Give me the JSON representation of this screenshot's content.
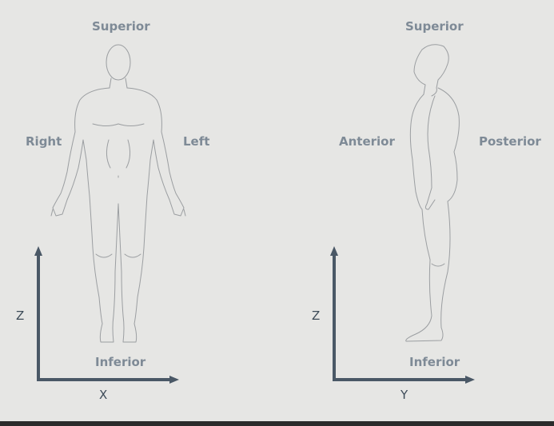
{
  "front_view": {
    "superior": "Superior",
    "inferior": "Inferior",
    "right": "Right",
    "left": "Left",
    "vertical_axis": "Z",
    "horizontal_axis": "X"
  },
  "side_view": {
    "superior": "Superior",
    "inferior": "Inferior",
    "anterior": "Anterior",
    "posterior": "Posterior",
    "vertical_axis": "Z",
    "horizontal_axis": "Y"
  },
  "colors": {
    "background": "#e6e6e4",
    "label": "#7e8a96",
    "axis": "#4a5866",
    "outline": "#9b9ea1"
  }
}
